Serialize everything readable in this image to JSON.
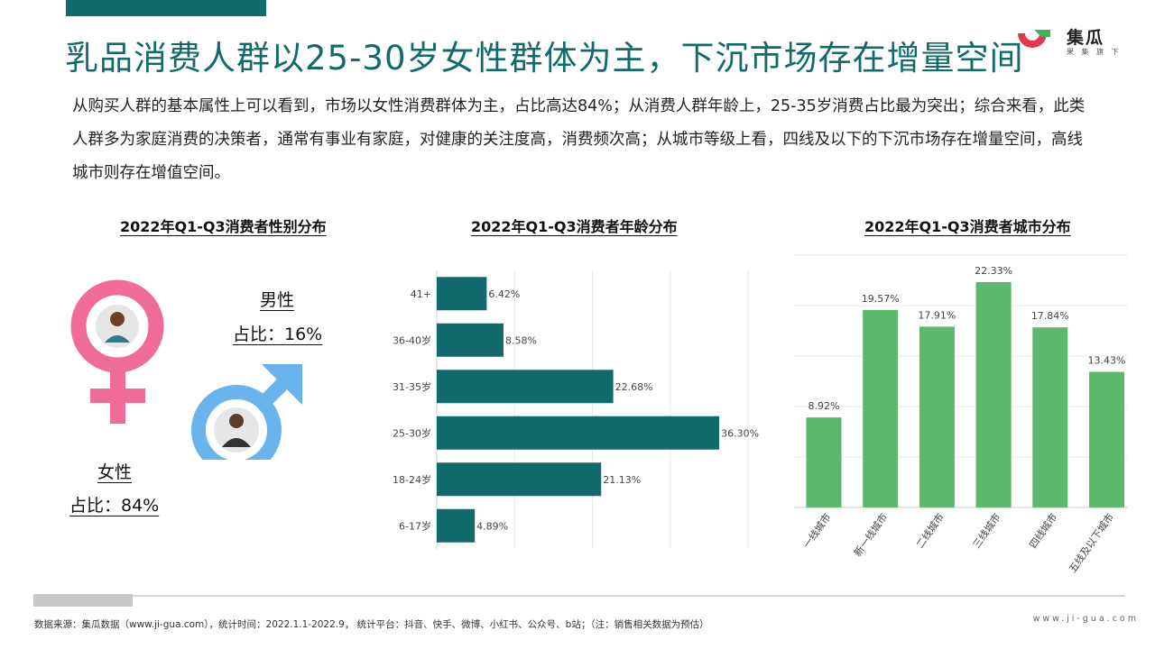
{
  "page": {
    "title": "乳品消费人群以25-30岁女性群体为主，下沉市场存在增量空间",
    "summary": "从购买人群的基本属性上可以看到，市场以女性消费群体为主，占比高达84%；从消费人群年龄上，25-35岁消费占比最为突出；综合来看，此类人群多为家庭消费的决策者，通常有事业有家庭，对健康的关注度高，消费频次高；从城市等级上看，四线及以下的下沉市场存在增量空间，高线城市则存在增值空间。"
  },
  "logo": {
    "name": "集瓜",
    "sub": "果 集 旗 下"
  },
  "colors": {
    "brand": "#116b6b",
    "female": "#ef6c97",
    "male": "#69b4ec",
    "city_bar": "#5cb86c",
    "age_bar": "#116b6b"
  },
  "chart_data": [
    {
      "type": "pie",
      "title": "2022年Q1-Q3消费者性别分布",
      "series": [
        {
          "name": "女性",
          "value": 84,
          "label": "占比：84%"
        },
        {
          "name": "男性",
          "value": 16,
          "label": "占比：16%"
        }
      ]
    },
    {
      "type": "bar",
      "orientation": "horizontal",
      "title": "2022年Q1-Q3消费者年龄分布",
      "categories": [
        "41+",
        "36-40岁",
        "31-35岁",
        "25-30岁",
        "18-24岁",
        "6-17岁"
      ],
      "values": [
        6.42,
        8.58,
        22.68,
        36.3,
        21.13,
        4.89
      ],
      "value_labels": [
        "6.42%",
        "8.58%",
        "22.68%",
        "36.30%",
        "21.13%",
        "4.89%"
      ],
      "xlim": [
        0,
        40
      ],
      "grid": true
    },
    {
      "type": "bar",
      "title": "2022年Q1-Q3消费者城市分布",
      "categories": [
        "一线城市",
        "新一线城市",
        "二线城市",
        "三线城市",
        "四线城市",
        "五线及以下城市"
      ],
      "values": [
        8.92,
        19.57,
        17.91,
        22.33,
        17.84,
        13.43
      ],
      "value_labels": [
        "8.92%",
        "19.57%",
        "17.91%",
        "22.33%",
        "17.84%",
        "13.43%"
      ],
      "ylim": [
        0,
        25
      ],
      "grid": true
    }
  ],
  "footer": {
    "note": "数据来源：集瓜数据（www.ji-gua.com），统计时间：2022.1.1-2022.9，  统计平台：抖音、快手、微博、小红书、公众号、b站；（注：销售相关数据为预估）",
    "url": "www.ji-gua.com"
  }
}
